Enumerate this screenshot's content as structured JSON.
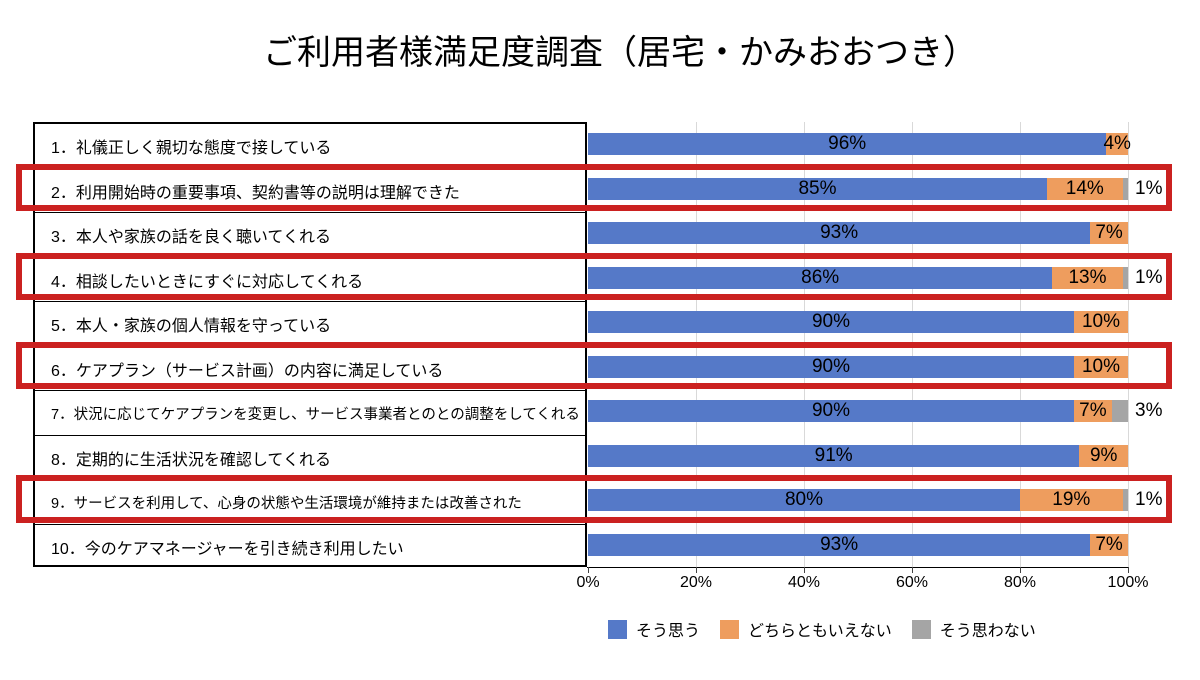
{
  "title": "ご利用者様満足度調査（居宅・かみおおつき）",
  "chart_data": {
    "type": "bar",
    "orientation": "horizontal",
    "stacked": true,
    "title": "ご利用者様満足度調査（居宅・かみおおつき）",
    "categories": [
      "1．礼儀正しく親切な態度で接している",
      "2．利用開始時の重要事項、契約書等の説明は理解できた",
      "3．本人や家族の話を良く聴いてくれる",
      "4．相談したいときにすぐに対応してくれる",
      "5．本人・家族の個人情報を守っている",
      "6．ケアプラン（サービス計画）の内容に満足している",
      "7．状況に応じてケアプランを変更し、サービス事業者とのとの調整をしてくれる",
      "8．定期的に生活状況を確認してくれる",
      "9．サービスを利用して、心身の状態や生活環境が維持または改善された",
      "10．今のケアマネージャーを引き続き利用したい"
    ],
    "series": [
      {
        "name": "そう思う",
        "color": "#5579C8",
        "values": [
          96,
          85,
          93,
          86,
          90,
          90,
          90,
          91,
          80,
          93
        ]
      },
      {
        "name": "どちらともいえない",
        "color": "#EE9D5E",
        "values": [
          4,
          14,
          7,
          13,
          10,
          10,
          7,
          9,
          19,
          7
        ]
      },
      {
        "name": "そう思わない",
        "color": "#A5A5A5",
        "values": [
          0,
          1,
          0,
          1,
          0,
          0,
          3,
          0,
          1,
          0
        ]
      }
    ],
    "highlighted_questions": [
      2,
      4,
      6,
      9
    ],
    "highlight_color": "#CB2120",
    "xlim": [
      0,
      100
    ],
    "x_ticks": [
      "0%",
      "20%",
      "40%",
      "60%",
      "80%",
      "100%"
    ],
    "grid": true,
    "legend_position": "bottom"
  }
}
